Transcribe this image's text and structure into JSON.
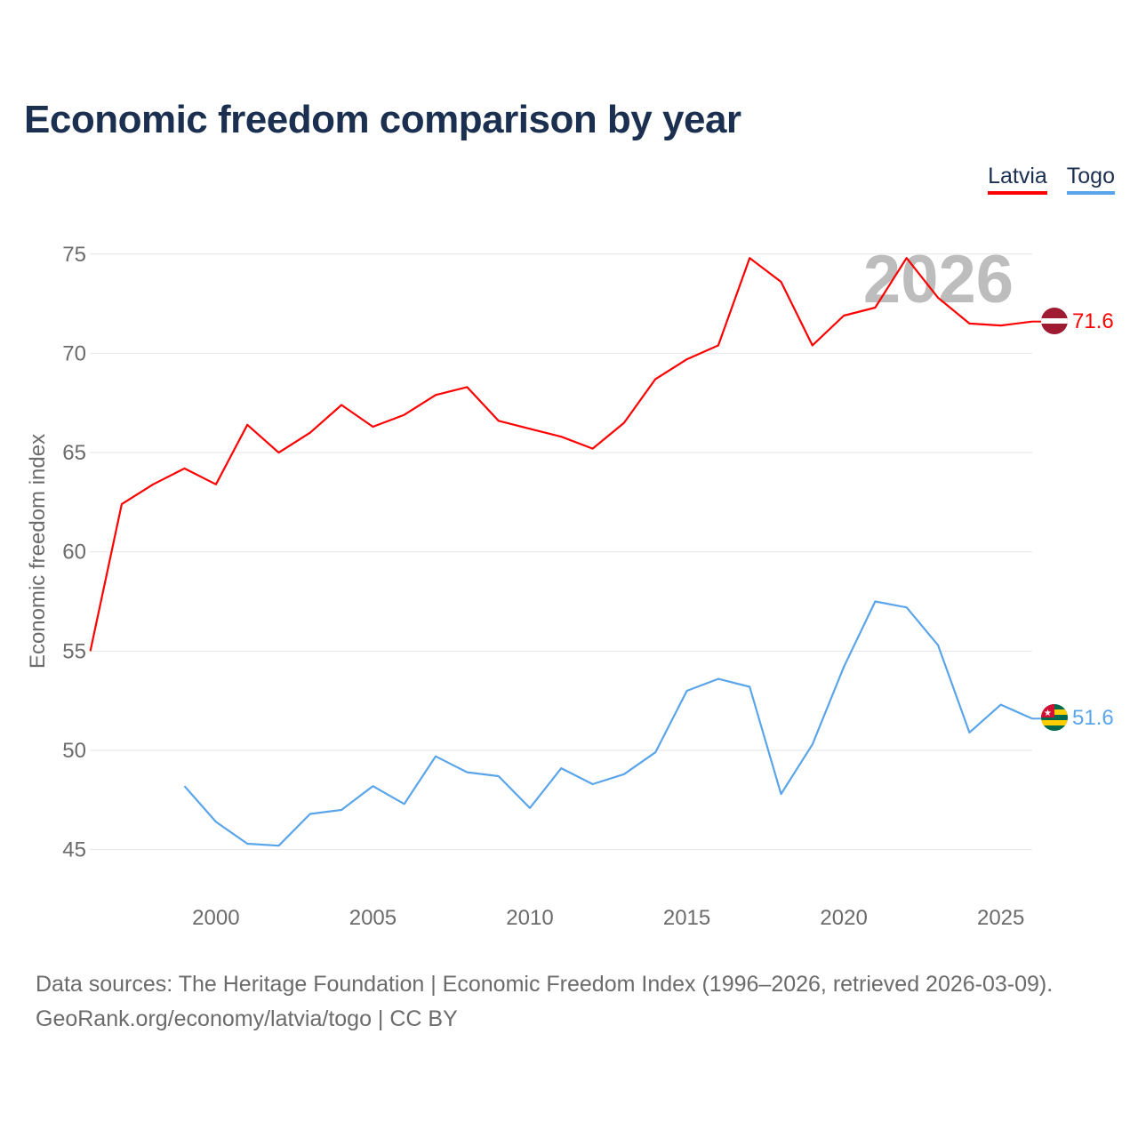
{
  "title": "Economic freedom comparison by year",
  "source_line1": "Data sources: The Heritage Foundation | Economic Freedom Index (1996–2026, retrieved 2026-03-09).",
  "source_line2": "GeoRank.org/economy/latvia/togo | CC BY",
  "chart_data": {
    "type": "line",
    "title": "Economic freedom comparison by year",
    "xlabel": "",
    "ylabel": "Economic freedom index",
    "xlim": [
      1996,
      2026
    ],
    "ylim": [
      43,
      77
    ],
    "yticks": [
      45,
      50,
      55,
      60,
      65,
      70,
      75
    ],
    "xticks": [
      2000,
      2005,
      2010,
      2015,
      2020,
      2025
    ],
    "grid": true,
    "legend_position": "top-right",
    "year_watermark": "2026",
    "series": [
      {
        "name": "Latvia",
        "color": "#ff0000",
        "end_label": "71.6",
        "x": [
          1996,
          1997,
          1998,
          1999,
          2000,
          2001,
          2002,
          2003,
          2004,
          2005,
          2006,
          2007,
          2008,
          2009,
          2010,
          2011,
          2012,
          2013,
          2014,
          2015,
          2016,
          2017,
          2018,
          2019,
          2020,
          2021,
          2022,
          2023,
          2024,
          2025,
          2026
        ],
        "values": [
          55.0,
          62.4,
          63.4,
          64.2,
          63.4,
          66.4,
          65.0,
          66.0,
          67.4,
          66.3,
          66.9,
          67.9,
          68.3,
          66.6,
          66.2,
          65.8,
          65.2,
          66.5,
          68.7,
          69.7,
          70.4,
          74.8,
          73.6,
          70.4,
          71.9,
          72.3,
          74.8,
          72.8,
          71.5,
          71.4,
          71.6
        ]
      },
      {
        "name": "Togo",
        "color": "#5aa5ea",
        "end_label": "51.6",
        "x": [
          1999,
          2000,
          2001,
          2002,
          2003,
          2004,
          2005,
          2006,
          2007,
          2008,
          2009,
          2010,
          2011,
          2012,
          2013,
          2014,
          2015,
          2016,
          2017,
          2018,
          2019,
          2020,
          2021,
          2022,
          2023,
          2024,
          2025,
          2026
        ],
        "values": [
          48.2,
          46.4,
          45.3,
          45.2,
          46.8,
          47.0,
          48.2,
          47.3,
          49.7,
          48.9,
          48.7,
          47.1,
          49.1,
          48.3,
          48.8,
          49.9,
          53.0,
          53.6,
          53.2,
          47.8,
          50.3,
          54.2,
          57.5,
          57.2,
          55.3,
          50.9,
          52.3,
          51.6
        ]
      }
    ]
  }
}
